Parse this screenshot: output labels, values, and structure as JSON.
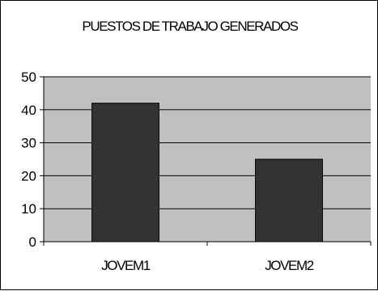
{
  "chart_data": {
    "type": "bar",
    "title": "PUESTOS DE TRABAJO GENERADOS",
    "categories": [
      "JOVEM1",
      "JOVEM2"
    ],
    "values": [
      42,
      25
    ],
    "xlabel": "",
    "ylabel": "",
    "ylim": [
      0,
      50
    ],
    "yticks": [
      0,
      10,
      20,
      30,
      40,
      50
    ],
    "grid": true,
    "legend": "none",
    "colors": {
      "plot_background": "#c0c0c0",
      "bar_fill": "#333333",
      "gridline": "#000000",
      "axis": "#000000"
    }
  }
}
